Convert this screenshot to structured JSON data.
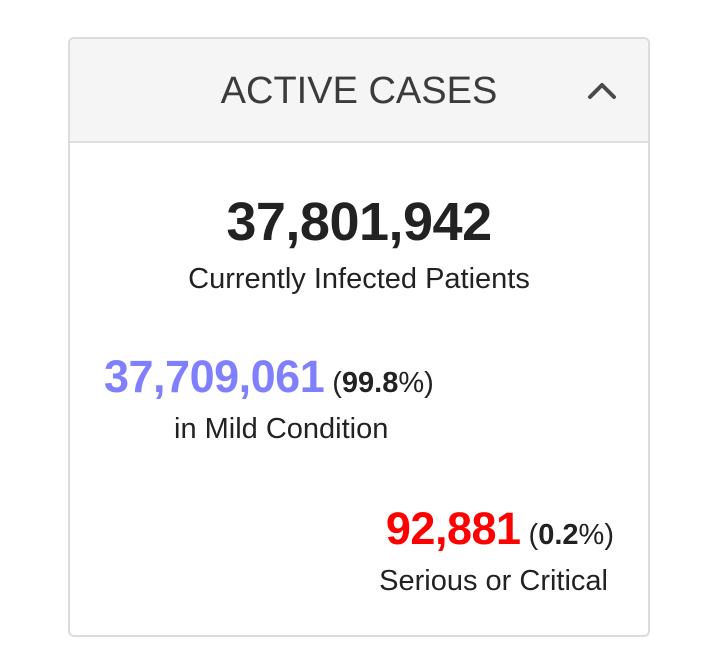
{
  "header": {
    "title": "ACTIVE CASES",
    "collapse_icon": "chevron-up-icon"
  },
  "summary": {
    "total": "37,801,942",
    "total_label": "Currently Infected Patients"
  },
  "mild": {
    "value": "37,709,061",
    "open_paren": "(",
    "percent": "99.8",
    "percent_suffix": "%)",
    "label": "in Mild Condition",
    "color": "#8080ff"
  },
  "serious": {
    "value": "92,881",
    "open_paren": "(",
    "percent": "0.2",
    "percent_suffix": "%)",
    "label": "Serious or Critical",
    "color": "#ff0000"
  }
}
